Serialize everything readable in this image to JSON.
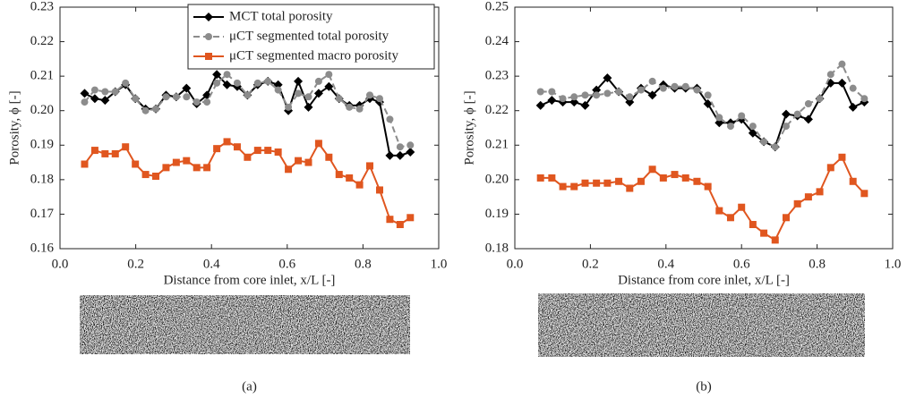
{
  "chart_data": [
    {
      "type": "line",
      "caption": "(a)",
      "xlabel": "Distance from core inlet, x/L [-]",
      "ylabel": "Porosity, ϕ [-]",
      "xlim": [
        0,
        1
      ],
      "xticks": [
        {
          "value": 0,
          "label": "0.0"
        },
        0.2,
        0.4,
        0.6,
        0.8,
        {
          "value": 1,
          "label": "1.0"
        }
      ],
      "ylim": [
        0.16,
        0.23
      ],
      "yticks": [
        0.16,
        0.17,
        0.18,
        0.19,
        {
          "value": 0.2,
          "label": "0.20"
        },
        0.21,
        0.22,
        0.23
      ],
      "legend": "upper right",
      "x": [
        0.065,
        0.092,
        0.119,
        0.146,
        0.173,
        0.199,
        0.226,
        0.253,
        0.28,
        0.307,
        0.334,
        0.361,
        0.388,
        0.414,
        0.441,
        0.468,
        0.495,
        0.522,
        0.549,
        0.576,
        0.603,
        0.629,
        0.656,
        0.683,
        0.71,
        0.737,
        0.764,
        0.791,
        0.818,
        0.844,
        0.871,
        0.898,
        0.925
      ],
      "series": [
        {
          "name": "MCT total porosity",
          "color": "#000000",
          "marker": "diamond",
          "linestyle": "solid",
          "values": [
            0.205,
            0.2035,
            0.203,
            0.2055,
            0.2075,
            0.2035,
            0.2005,
            0.2005,
            0.2045,
            0.204,
            0.2065,
            0.202,
            0.2045,
            0.2105,
            0.2075,
            0.207,
            0.2045,
            0.2075,
            0.2085,
            0.2075,
            0.2,
            0.2085,
            0.201,
            0.205,
            0.207,
            0.2035,
            0.2015,
            0.2015,
            0.2035,
            0.2025,
            0.187,
            0.187,
            0.188
          ]
        },
        {
          "name": "μCT segmented total porosity",
          "color": "#8c8c8c",
          "marker": "circle",
          "linestyle": "dashed",
          "values": [
            0.2025,
            0.206,
            0.2055,
            0.2055,
            0.208,
            0.2035,
            0.2,
            0.2005,
            0.204,
            0.204,
            0.204,
            0.2025,
            0.2025,
            0.208,
            0.2105,
            0.208,
            0.2045,
            0.208,
            0.2085,
            0.206,
            0.201,
            0.205,
            0.204,
            0.2085,
            0.2105,
            0.2035,
            0.201,
            0.2005,
            0.2045,
            0.2035,
            0.1975,
            0.1895,
            0.19
          ]
        },
        {
          "name": "μCT segmented macro porosity",
          "color": "#e0561f",
          "marker": "square",
          "linestyle": "solid",
          "values": [
            0.1845,
            0.1885,
            0.1875,
            0.1875,
            0.1895,
            0.1845,
            0.1815,
            0.181,
            0.1835,
            0.185,
            0.1855,
            0.1835,
            0.1835,
            0.189,
            0.191,
            0.1895,
            0.1865,
            0.1885,
            0.1885,
            0.188,
            0.183,
            0.1855,
            0.185,
            0.1905,
            0.1865,
            0.1815,
            0.1805,
            0.1785,
            0.184,
            0.177,
            0.1685,
            0.167,
            0.169
          ]
        }
      ]
    },
    {
      "type": "line",
      "caption": "(b)",
      "xlabel": "Distance from core inlet, x/L [-]",
      "ylabel": "Porosity, ϕ [-]",
      "xlim": [
        0,
        1
      ],
      "xticks": [
        {
          "value": 0,
          "label": "0.0"
        },
        0.2,
        0.4,
        0.6,
        0.8,
        {
          "value": 1,
          "label": "1.0"
        }
      ],
      "ylim": [
        0.18,
        0.25
      ],
      "yticks": [
        0.18,
        0.19,
        {
          "value": 0.2,
          "label": "0.20"
        },
        0.21,
        0.22,
        0.23,
        0.24,
        0.25
      ],
      "x": [
        0.068,
        0.098,
        0.127,
        0.157,
        0.186,
        0.216,
        0.245,
        0.275,
        0.304,
        0.334,
        0.364,
        0.393,
        0.423,
        0.452,
        0.482,
        0.511,
        0.541,
        0.571,
        0.6,
        0.63,
        0.659,
        0.689,
        0.718,
        0.748,
        0.777,
        0.807,
        0.836,
        0.866,
        0.895,
        0.925
      ],
      "series": [
        {
          "color": "#000000",
          "marker": "diamond",
          "linestyle": "solid",
          "values": [
            0.2215,
            0.223,
            0.2225,
            0.2225,
            0.2215,
            0.226,
            0.2295,
            0.2255,
            0.2225,
            0.2265,
            0.2245,
            0.2275,
            0.2265,
            0.2265,
            0.2265,
            0.222,
            0.2165,
            0.2165,
            0.2175,
            0.2135,
            0.211,
            0.2095,
            0.219,
            0.2185,
            0.2175,
            0.2235,
            0.228,
            0.228,
            0.221,
            0.2225
          ]
        },
        {
          "color": "#8c8c8c",
          "marker": "circle",
          "linestyle": "dashed",
          "values": [
            0.2255,
            0.2255,
            0.2235,
            0.224,
            0.2245,
            0.2245,
            0.225,
            0.2255,
            0.224,
            0.226,
            0.2285,
            0.2265,
            0.227,
            0.227,
            0.226,
            0.2245,
            0.218,
            0.2155,
            0.2185,
            0.2155,
            0.211,
            0.2095,
            0.2155,
            0.219,
            0.222,
            0.2235,
            0.2305,
            0.2335,
            0.2265,
            0.2235
          ]
        },
        {
          "color": "#e0561f",
          "marker": "square",
          "linestyle": "solid",
          "values": [
            0.2005,
            0.2005,
            0.198,
            0.198,
            0.199,
            0.199,
            0.199,
            0.1995,
            0.1975,
            0.1995,
            0.203,
            0.2005,
            0.2015,
            0.2005,
            0.1995,
            0.198,
            0.191,
            0.189,
            0.192,
            0.187,
            0.1845,
            0.1825,
            0.189,
            0.193,
            0.195,
            0.1965,
            0.2035,
            0.2065,
            0.1995,
            0.196
          ]
        }
      ]
    }
  ]
}
